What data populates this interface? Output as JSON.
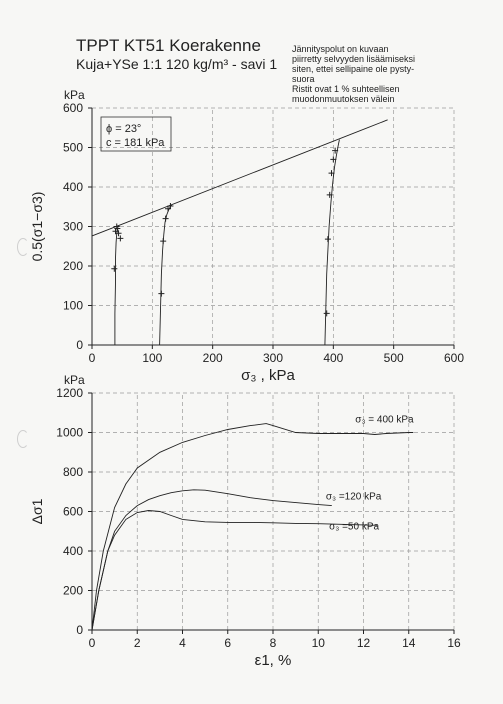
{
  "title": "TPPT KT51 Koerakenne",
  "subtitle": "Kuja+YSe 1:1 120 kg/m³ - savi 1",
  "note_lines": [
    "Jännityspolut on kuvaan",
    "piirretty selvyyden lisäämiseksi",
    "siten, ettei sellipaine ole pysty-",
    "suora",
    "Ristit ovat 1 % suhteellisen",
    "muodonmuutoksen välein"
  ],
  "chart_data": [
    {
      "type": "line",
      "name": "stress-paths",
      "xlabel": "σ₃ , kPa",
      "ylabel": "0.5(σ1−σ3)",
      "yunit": "kPa",
      "xlim": [
        0,
        600
      ],
      "ylim": [
        0,
        600
      ],
      "xticks": [
        0,
        100,
        200,
        300,
        400,
        500,
        600
      ],
      "yticks": [
        0,
        100,
        200,
        300,
        400,
        500,
        600
      ],
      "grid": "dashed",
      "parameters": [
        "ϕ = 23°",
        "c = 181 kPa"
      ],
      "envelope": [
        [
          0,
          276
        ],
        [
          490,
          570
        ]
      ],
      "series": [
        {
          "x": [
            38,
            38,
            39,
            39,
            40,
            41,
            42,
            44
          ],
          "y": [
            0,
            80,
            160,
            220,
            260,
            280,
            290,
            297
          ]
        },
        {
          "x": [
            112,
            113,
            114,
            115,
            117,
            119,
            121,
            124,
            128,
            132
          ],
          "y": [
            0,
            60,
            120,
            180,
            240,
            280,
            310,
            330,
            345,
            355
          ]
        },
        {
          "x": [
            386,
            387,
            388,
            389,
            391,
            393,
            396,
            399,
            402,
            405,
            408,
            410
          ],
          "y": [
            0,
            60,
            120,
            180,
            240,
            300,
            360,
            410,
            450,
            480,
            505,
            520
          ]
        }
      ],
      "markers": [
        {
          "x": 37,
          "y": 193
        },
        {
          "x": 39,
          "y": 288
        },
        {
          "x": 42,
          "y": 295
        },
        {
          "x": 44,
          "y": 283
        },
        {
          "x": 47,
          "y": 270
        },
        {
          "x": 41,
          "y": 300
        },
        {
          "x": 115,
          "y": 130
        },
        {
          "x": 118,
          "y": 263
        },
        {
          "x": 122,
          "y": 320
        },
        {
          "x": 126,
          "y": 345
        },
        {
          "x": 130,
          "y": 352
        },
        {
          "x": 389,
          "y": 80
        },
        {
          "x": 391,
          "y": 268
        },
        {
          "x": 394,
          "y": 380
        },
        {
          "x": 397,
          "y": 435
        },
        {
          "x": 400,
          "y": 470
        },
        {
          "x": 403,
          "y": 492
        }
      ]
    },
    {
      "type": "line",
      "name": "deviator-curves",
      "xlabel": "ε1, %",
      "ylabel": "Δσ1",
      "yunit": "kPa",
      "xlim": [
        0,
        16
      ],
      "ylim": [
        0,
        1200
      ],
      "xticks": [
        0,
        2,
        4,
        6,
        8,
        10,
        12,
        14,
        16
      ],
      "yticks": [
        0,
        200,
        400,
        600,
        800,
        1000,
        1200
      ],
      "grid": "dashed",
      "series": [
        {
          "name": "σ₃ = 400 kPa",
          "x": [
            0,
            0.2,
            0.5,
            1,
            1.5,
            2,
            3,
            4,
            5,
            6,
            7,
            7.7,
            8,
            9,
            10,
            11,
            12,
            12.5,
            13,
            14,
            14.2
          ],
          "y": [
            0,
            200,
            400,
            620,
            740,
            820,
            900,
            950,
            985,
            1015,
            1035,
            1045,
            1035,
            1000,
            995,
            995,
            995,
            990,
            995,
            1000,
            1000
          ]
        },
        {
          "name": "σ₃ =120 kPa",
          "x": [
            0,
            0.3,
            0.7,
            1,
            1.5,
            2,
            2.5,
            3,
            3.5,
            4,
            4.5,
            5,
            6,
            7,
            8,
            9,
            10,
            10.6
          ],
          "y": [
            0,
            200,
            400,
            500,
            580,
            630,
            660,
            680,
            695,
            705,
            710,
            708,
            690,
            670,
            655,
            645,
            635,
            630
          ]
        },
        {
          "name": "σ₃ =50 kPa",
          "x": [
            0,
            0.3,
            0.7,
            1,
            1.5,
            2,
            2.5,
            3,
            3.5,
            4,
            5,
            6,
            7,
            8,
            9,
            10,
            11,
            12,
            12.6
          ],
          "y": [
            0,
            200,
            400,
            480,
            560,
            595,
            605,
            600,
            580,
            560,
            548,
            545,
            545,
            543,
            540,
            538,
            535,
            532,
            530
          ]
        }
      ]
    }
  ]
}
